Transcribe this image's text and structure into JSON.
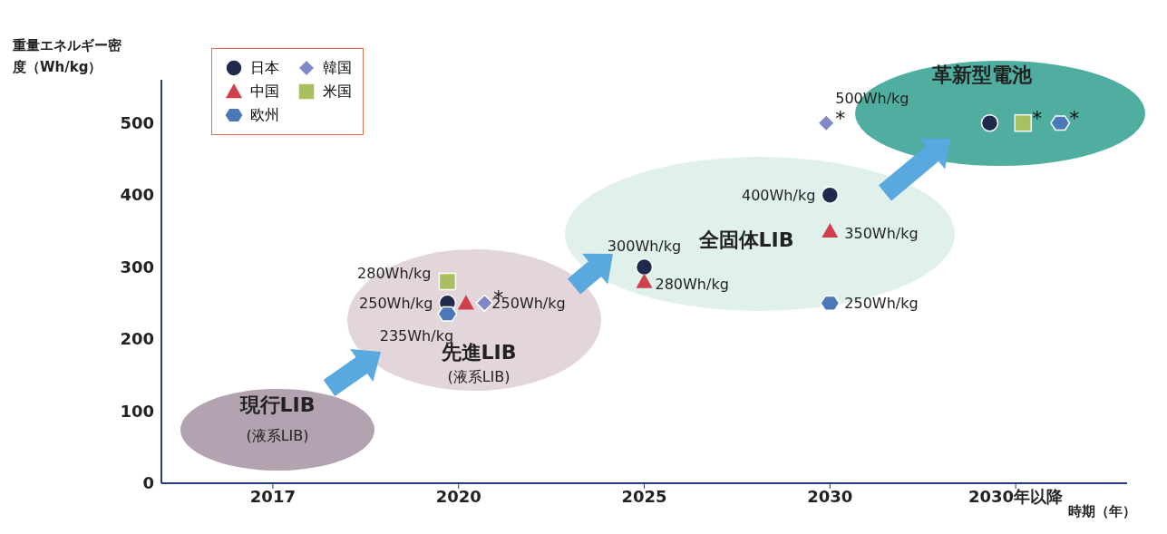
{
  "chart_data": {
    "type": "scatter",
    "ylabel": "重量エネルギー密度（Wh/kg）",
    "xlabel": "時期（年）",
    "categories": [
      "2017",
      "2020",
      "2025",
      "2030",
      "2030年以降"
    ],
    "ylim": [
      0,
      560
    ],
    "yticks": [
      0,
      100,
      200,
      300,
      400,
      500
    ],
    "grid": false,
    "legend": "top left",
    "series": [
      {
        "name": "日本",
        "color": "#1f2a4d",
        "marker": "circle",
        "values": [
          null,
          250,
          300,
          400,
          500
        ],
        "value_labels": [
          null,
          "250Wh/kg",
          "300Wh/kg",
          "400Wh/kg",
          null
        ]
      },
      {
        "name": "中国",
        "color": "#d0404a",
        "marker": "triangle",
        "values": [
          null,
          250,
          280,
          350,
          null
        ],
        "value_labels": [
          null,
          null,
          "280Wh/kg",
          "350Wh/kg",
          null
        ]
      },
      {
        "name": "欧州",
        "color": "#4a78b8",
        "values": [
          null,
          235,
          null,
          250,
          500
        ],
        "value_labels": [
          null,
          "235Wh/kg",
          null,
          "250Wh/kg",
          null
        ]
      },
      {
        "name": "韓国",
        "color": "#8088c8",
        "marker": "diamond",
        "values": [
          null,
          250,
          null,
          500,
          null
        ],
        "value_labels": [
          null,
          "250Wh/kg",
          null,
          "500Wh/kg",
          null
        ]
      },
      {
        "name": "米国",
        "color": "#a8c060",
        "marker": "square",
        "values": [
          null,
          280,
          null,
          null,
          500
        ],
        "value_labels": [
          null,
          "280Wh/kg",
          null,
          null,
          null
        ]
      }
    ],
    "annotations": [
      "現行LIB",
      "(液系LIB)",
      "先進LIB",
      "(液系LIB)",
      "全固体LIB",
      "革新型電池",
      {
        "text": "*",
        "x": "2020",
        "y": 250
      },
      {
        "text": "*",
        "x": "2030",
        "y": 500
      },
      {
        "text": "*",
        "x": "2030年以降",
        "y": 500
      },
      {
        "text": "*",
        "x": "2030年以降",
        "y": 500
      }
    ]
  }
}
